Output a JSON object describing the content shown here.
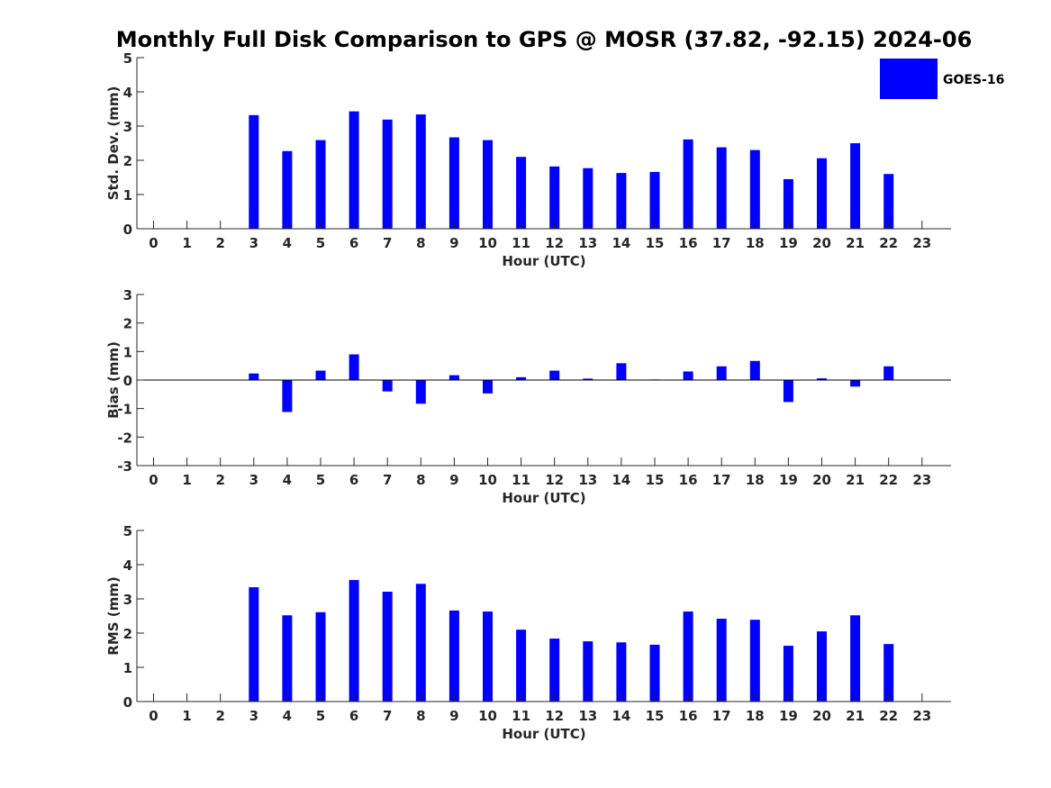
{
  "title": "Monthly Full Disk Comparison to GPS @ MOSR (37.82, -92.15) 2024-06",
  "legend": {
    "label": "GOES-16",
    "color": "#0000ff"
  },
  "colors": {
    "bar": "#0000ff",
    "axis": "#262626"
  },
  "chart_data": [
    {
      "type": "bar",
      "name": "std",
      "xlabel": "Hour (UTC)",
      "ylabel": "Std. Dev. (mm)",
      "ylim": [
        0,
        5
      ],
      "yticks": [
        0,
        1,
        2,
        3,
        4,
        5
      ],
      "categories": [
        0,
        1,
        2,
        3,
        4,
        5,
        6,
        7,
        8,
        9,
        10,
        11,
        12,
        13,
        14,
        15,
        16,
        17,
        18,
        19,
        20,
        21,
        22,
        23
      ],
      "values": [
        null,
        null,
        null,
        3.32,
        2.27,
        2.59,
        3.43,
        3.19,
        3.34,
        2.67,
        2.59,
        2.1,
        1.82,
        1.77,
        1.63,
        1.66,
        2.61,
        2.38,
        2.3,
        1.45,
        2.06,
        2.5,
        1.6,
        null
      ]
    },
    {
      "type": "bar",
      "name": "bias",
      "xlabel": "Hour (UTC)",
      "ylabel": "Bias (mm)",
      "ylim": [
        -3,
        3
      ],
      "yticks": [
        -3,
        -2,
        -1,
        0,
        1,
        2,
        3
      ],
      "categories": [
        0,
        1,
        2,
        3,
        4,
        5,
        6,
        7,
        8,
        9,
        10,
        11,
        12,
        13,
        14,
        15,
        16,
        17,
        18,
        19,
        20,
        21,
        22,
        23
      ],
      "values": [
        null,
        null,
        null,
        0.23,
        -1.12,
        0.33,
        0.9,
        -0.4,
        -0.83,
        0.17,
        -0.47,
        0.1,
        0.33,
        0.05,
        0.59,
        0.02,
        0.3,
        0.48,
        0.67,
        -0.77,
        0.06,
        -0.23,
        0.48,
        null
      ]
    },
    {
      "type": "bar",
      "name": "rms",
      "xlabel": "Hour (UTC)",
      "ylabel": "RMS (mm)",
      "ylim": [
        0,
        5
      ],
      "yticks": [
        0,
        1,
        2,
        3,
        4,
        5
      ],
      "categories": [
        0,
        1,
        2,
        3,
        4,
        5,
        6,
        7,
        8,
        9,
        10,
        11,
        12,
        13,
        14,
        15,
        16,
        17,
        18,
        19,
        20,
        21,
        22,
        23
      ],
      "values": [
        null,
        null,
        null,
        3.34,
        2.52,
        2.61,
        3.55,
        3.21,
        3.44,
        2.66,
        2.63,
        2.1,
        1.84,
        1.76,
        1.73,
        1.66,
        2.63,
        2.42,
        2.39,
        1.63,
        2.05,
        2.52,
        1.68,
        null
      ]
    }
  ]
}
